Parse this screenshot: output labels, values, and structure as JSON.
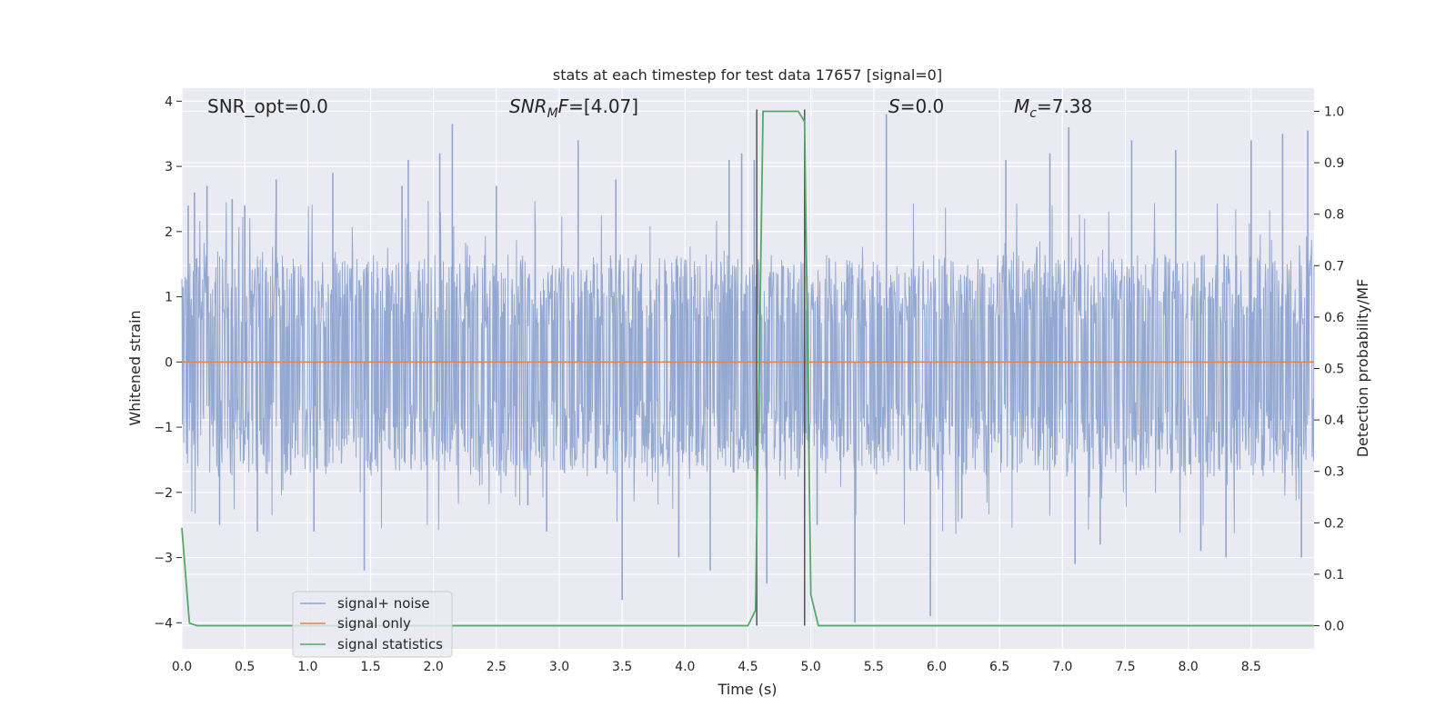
{
  "chart_data": {
    "type": "line",
    "title": "stats at each timestep for test data 17657 [signal=0]",
    "xlabel": "Time (s)",
    "ylabel_left": "Whitened strain",
    "ylabel_right": "Detection probability/MF",
    "xlim": [
      0.0,
      9.0
    ],
    "ylim_left": [
      -4.4,
      4.2
    ],
    "ylim_right": [
      -0.045,
      1.045
    ],
    "x_ticks": [
      "0.0",
      "0.5",
      "1.0",
      "1.5",
      "2.0",
      "2.5",
      "3.0",
      "3.5",
      "4.0",
      "4.5",
      "5.0",
      "5.5",
      "6.0",
      "6.5",
      "7.0",
      "7.5",
      "8.0",
      "8.5"
    ],
    "y_ticks_left": [
      "4",
      "3",
      "2",
      "1",
      "0",
      "−1",
      "−2",
      "−3",
      "−4"
    ],
    "y_ticks_right": [
      "1.0",
      "0.9",
      "0.8",
      "0.7",
      "0.6",
      "0.5",
      "0.4",
      "0.3",
      "0.2",
      "0.1",
      "0.0"
    ],
    "grid": true,
    "legend_position": "lower-left",
    "annotations": {
      "snr_opt": "SNR_opt=0.0",
      "snr_mf": "=[4.07]",
      "s": "=0.0",
      "mc": "=7.38"
    },
    "series": [
      {
        "name": "signal+ noise",
        "color": "#8fa5cf",
        "description_of_values": "whitened noise, amplitude envelope roughly ±1.5 with spikes to ±3.8",
        "envelope_pos": 1.5,
        "envelope_neg": -1.6,
        "spikes": [
          [
            0.05,
            2.4
          ],
          [
            0.1,
            2.6
          ],
          [
            0.2,
            2.7
          ],
          [
            0.4,
            2.5
          ],
          [
            0.5,
            2.4
          ],
          [
            0.75,
            2.8
          ],
          [
            1.2,
            2.9
          ],
          [
            1.75,
            2.7
          ],
          [
            1.8,
            3.1
          ],
          [
            2.05,
            3.2
          ],
          [
            2.15,
            3.65
          ],
          [
            2.5,
            2.7
          ],
          [
            3.15,
            3.4
          ],
          [
            3.45,
            2.8
          ],
          [
            4.35,
            3.1
          ],
          [
            4.45,
            3.2
          ],
          [
            4.55,
            3.1
          ],
          [
            5.6,
            3.8
          ],
          [
            6.55,
            3.1
          ],
          [
            6.9,
            3.2
          ],
          [
            7.05,
            3.6
          ],
          [
            7.55,
            3.4
          ],
          [
            7.9,
            3.25
          ],
          [
            8.5,
            3.4
          ],
          [
            8.75,
            3.5
          ],
          [
            8.95,
            3.55
          ],
          [
            0.6,
            -2.6
          ],
          [
            1.45,
            -3.2
          ],
          [
            1.05,
            -2.6
          ],
          [
            2.75,
            -2.2
          ],
          [
            3.5,
            -3.65
          ],
          [
            3.95,
            -3.0
          ],
          [
            4.2,
            -3.2
          ],
          [
            4.65,
            -3.4
          ],
          [
            5.35,
            -4.0
          ],
          [
            5.95,
            -3.9
          ],
          [
            6.2,
            -2.4
          ],
          [
            7.1,
            -3.1
          ],
          [
            7.3,
            -2.8
          ],
          [
            8.1,
            -2.9
          ],
          [
            8.3,
            -3.0
          ],
          [
            8.9,
            -3.0
          ],
          [
            0.3,
            -2.5
          ],
          [
            2.9,
            -2.6
          ],
          [
            5.05,
            -2.5
          ]
        ]
      },
      {
        "name": "signal only",
        "color": "#dd8452",
        "x": [
          0.0,
          9.0
        ],
        "y": [
          0.0,
          0.0
        ]
      },
      {
        "name": "signal statistics",
        "color": "#55a868",
        "axis": "right",
        "x": [
          0.0,
          0.06,
          0.12,
          0.5,
          4.5,
          4.56,
          4.62,
          4.9,
          4.95,
          5.0,
          5.06,
          9.0
        ],
        "y": [
          0.19,
          0.005,
          0.0,
          0.0,
          0.0,
          0.03,
          1.0,
          1.0,
          0.98,
          0.06,
          0.0,
          0.0
        ]
      }
    ],
    "vertical_lines": [
      4.57,
      4.95
    ]
  }
}
